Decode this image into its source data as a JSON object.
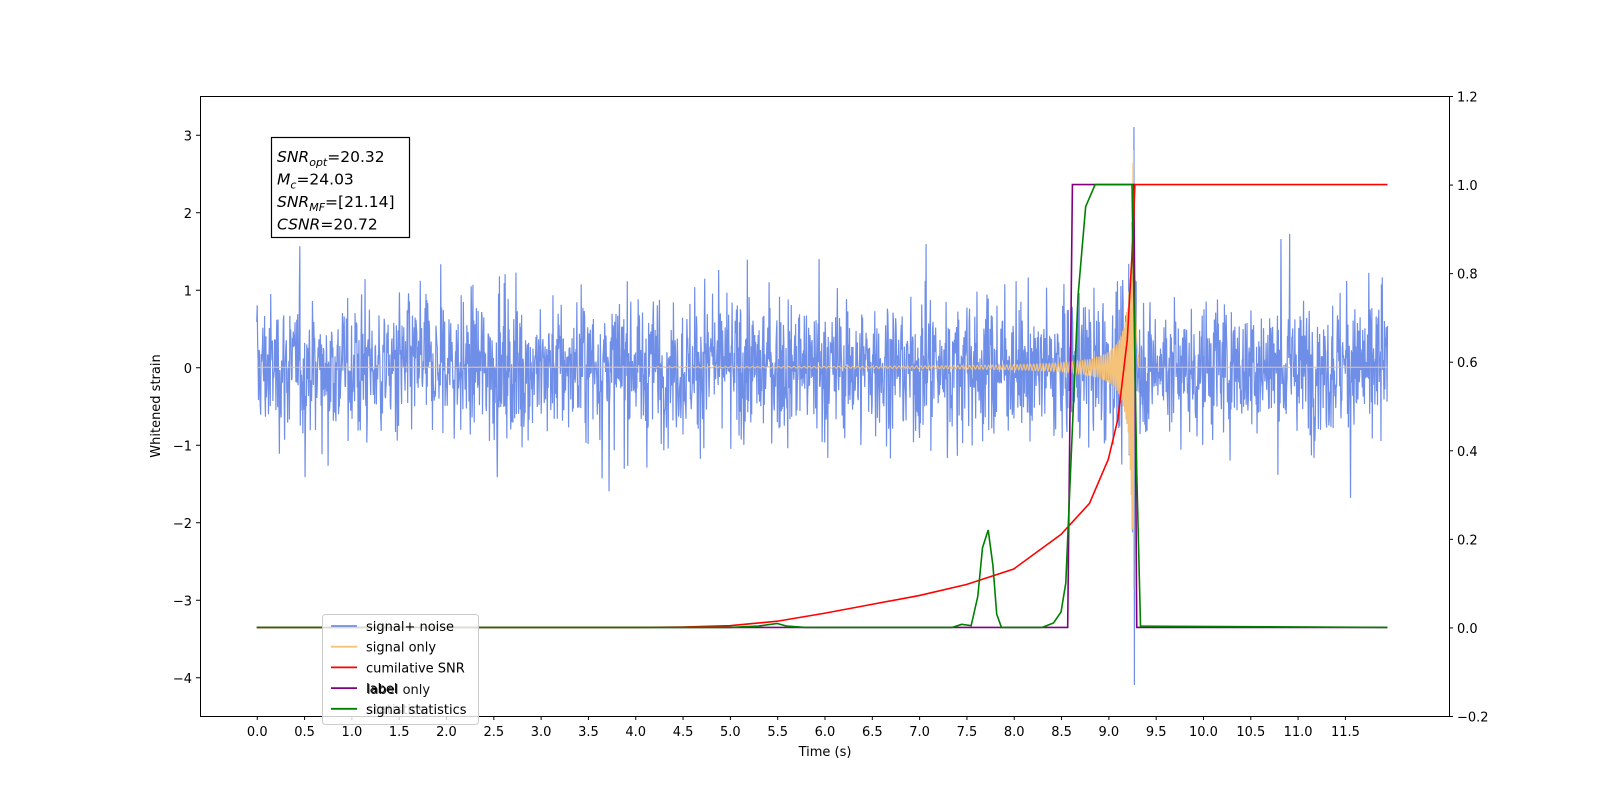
{
  "chart_data": {
    "type": "line",
    "xlabel": "Time (s)",
    "ylabel": "Whitened strain",
    "xlim": [
      -0.6,
      12.6
    ],
    "ylim": [
      -4.5,
      3.5
    ],
    "ylim_right": [
      -0.2,
      1.2
    ],
    "x_ticks": [
      "0.0",
      "0.5",
      "1.0",
      "1.5",
      "2.0",
      "2.5",
      "3.0",
      "3.5",
      "4.0",
      "4.5",
      "5.0",
      "5.5",
      "6.0",
      "6.5",
      "7.0",
      "7.5",
      "8.0",
      "8.5",
      "9.0",
      "9.5",
      "10.0",
      "10.5",
      "11.0",
      "11.5"
    ],
    "y_ticks_left": [
      "−4",
      "−3",
      "−2",
      "−1",
      "0",
      "1",
      "2",
      "3"
    ],
    "y_ticks_right": [
      "−0.2",
      "0.0",
      "0.2",
      "0.4",
      "0.6",
      "0.8",
      "1.0",
      "1.2"
    ],
    "grid": false,
    "legend_position": "lower-left",
    "annotation": {
      "lines": [
        {
          "base": "SNR",
          "sub": "opt",
          "rest": "=20.32"
        },
        {
          "base": "M",
          "sub": "c",
          "rest": "=24.03"
        },
        {
          "base": "SNR",
          "sub": "MF",
          "rest": "=[21.14]"
        },
        {
          "base": "CSNR",
          "sub": "",
          "rest": "=20.72"
        }
      ]
    },
    "series": [
      {
        "name": "signal+ noise",
        "axis": "left",
        "color": "#6f8ee8",
        "description_values": {
          "t_start": 0.0,
          "t_end": 11.95,
          "typical_range": [
            -1.8,
            1.8
          ],
          "max": 3.1,
          "min": -4.1,
          "max_at": 9.27,
          "min_at": 9.27
        }
      },
      {
        "name": "signal only",
        "axis": "left",
        "color": "#f5c27a",
        "chirp": {
          "t_start": 0.0,
          "t_merger": 9.27,
          "t_end": 11.95,
          "peak_amplitude": 2.95,
          "ringdown_end": 9.32
        }
      },
      {
        "name": "cumilative SNR",
        "axis": "right",
        "color": "#ff0000",
        "points": [
          [
            0.0,
            0.0
          ],
          [
            4.0,
            0.0
          ],
          [
            4.5,
            0.001
          ],
          [
            5.0,
            0.004
          ],
          [
            5.5,
            0.014
          ],
          [
            6.0,
            0.032
          ],
          [
            6.5,
            0.052
          ],
          [
            7.0,
            0.072
          ],
          [
            7.5,
            0.097
          ],
          [
            8.0,
            0.132
          ],
          [
            8.5,
            0.21
          ],
          [
            8.8,
            0.28
          ],
          [
            9.0,
            0.38
          ],
          [
            9.1,
            0.47
          ],
          [
            9.2,
            0.65
          ],
          [
            9.26,
            0.88
          ],
          [
            9.28,
            1.0
          ],
          [
            11.95,
            1.0
          ]
        ]
      },
      {
        "name": "label",
        "axis": "right",
        "color": "#800080",
        "points": [
          [
            0.0,
            0.0
          ],
          [
            8.57,
            0.0
          ],
          [
            8.62,
            1.0
          ],
          [
            9.27,
            1.0
          ],
          [
            9.3,
            0.0
          ],
          [
            11.95,
            0.0
          ]
        ]
      },
      {
        "name": "signal statistics",
        "axis": "right",
        "color": "#008000",
        "points": [
          [
            0.0,
            0.0
          ],
          [
            5.0,
            0.0
          ],
          [
            5.3,
            0.003
          ],
          [
            5.5,
            0.009
          ],
          [
            5.6,
            0.003
          ],
          [
            5.8,
            0.0
          ],
          [
            7.35,
            0.0
          ],
          [
            7.45,
            0.007
          ],
          [
            7.55,
            0.004
          ],
          [
            7.62,
            0.07
          ],
          [
            7.67,
            0.18
          ],
          [
            7.73,
            0.22
          ],
          [
            7.78,
            0.14
          ],
          [
            7.82,
            0.03
          ],
          [
            7.87,
            0.0
          ],
          [
            8.3,
            0.0
          ],
          [
            8.42,
            0.01
          ],
          [
            8.5,
            0.035
          ],
          [
            8.55,
            0.1
          ],
          [
            8.62,
            0.45
          ],
          [
            8.68,
            0.75
          ],
          [
            8.76,
            0.95
          ],
          [
            8.86,
            1.0
          ],
          [
            9.25,
            1.0
          ],
          [
            9.3,
            0.35
          ],
          [
            9.34,
            0.003
          ],
          [
            11.95,
            0.0
          ]
        ]
      }
    ],
    "legend": [
      {
        "label": "signal+ noise",
        "color": "#6f8ee8"
      },
      {
        "label": "signal only",
        "color": "#f5c27a"
      },
      {
        "label": "cumilative SNR",
        "color": "#ff0000"
      },
      {
        "label": "label",
        "color": "#800080"
      },
      {
        "label": "signal statistics",
        "color": "#008000"
      }
    ],
    "background_residual_text": [
      "label only",
      "statistics"
    ]
  }
}
